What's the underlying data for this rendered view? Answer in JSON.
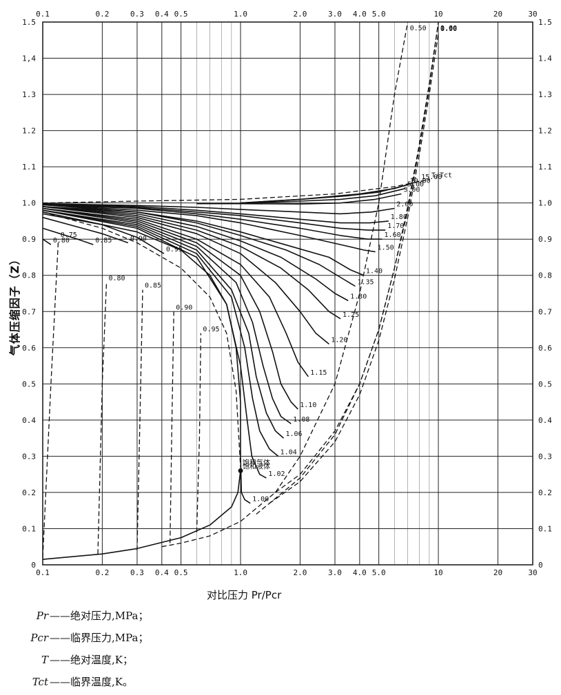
{
  "chart_data": {
    "type": "line",
    "title": "",
    "xlabel": "对比压力 Pr/Pcr",
    "ylabel": "气体压缩因子（Z）",
    "xscale": "log",
    "xlim": [
      0.1,
      30
    ],
    "ylim": [
      0,
      1.5
    ],
    "grid": true,
    "x_ticks": [
      {
        "value": 0.1,
        "label": "0.1"
      },
      {
        "value": 0.2,
        "label": "0.2"
      },
      {
        "value": 0.3,
        "label": "0.3"
      },
      {
        "value": 0.4,
        "label": "0.4"
      },
      {
        "value": 0.5,
        "label": "0.5"
      },
      {
        "value": 1.0,
        "label": "1.0"
      },
      {
        "value": 2.0,
        "label": "2.0"
      },
      {
        "value": 3.0,
        "label": "3.0"
      },
      {
        "value": 4.0,
        "label": "4.0"
      },
      {
        "value": 5.0,
        "label": "5.0"
      },
      {
        "value": 10,
        "label": "10"
      },
      {
        "value": 20,
        "label": "20"
      },
      {
        "value": 30,
        "label": "30"
      }
    ],
    "y_ticks_left": [
      "0",
      "0.1",
      "0.2",
      "0.3",
      "0.4",
      "0.5",
      "0.6",
      "0.7",
      "0.8",
      "0.9",
      "1.0",
      "1.1",
      "1.2",
      "1.3",
      "1,4",
      "1.5"
    ],
    "y_ticks_right": [
      "0",
      "0.1",
      "0.2",
      "0.3",
      "0.4",
      "0.5",
      "0.6",
      "0.7",
      "0.8",
      "0.9",
      "1.0",
      "1.1",
      "1.2",
      "1.3",
      "1.4",
      "1.5"
    ],
    "family_label": "T/Tct",
    "region_labels": [
      "饱和气体",
      "饱和液体"
    ],
    "series": [
      {
        "name": "0.80",
        "label": "0.80",
        "style": "solid",
        "x": [
          0.1,
          0.11
        ],
        "y": [
          0.9,
          0.885
        ]
      },
      {
        "name": "0.85",
        "label": "0.85",
        "style": "solid",
        "x": [
          0.1,
          0.15,
          0.18
        ],
        "y": [
          0.93,
          0.9,
          0.885
        ]
      },
      {
        "name": "0.90",
        "label": "0.90",
        "style": "solid",
        "x": [
          0.1,
          0.2,
          0.27
        ],
        "y": [
          0.96,
          0.915,
          0.89
        ]
      },
      {
        "name": "0.95",
        "label": "0.95",
        "style": "solid",
        "x": [
          0.1,
          0.2,
          0.3,
          0.41
        ],
        "y": [
          0.97,
          0.94,
          0.905,
          0.86
        ]
      },
      {
        "name": "1.00",
        "label": "1.00",
        "style": "solid",
        "x": [
          0.1,
          0.3,
          0.5,
          0.7,
          0.85,
          0.95,
          1.0,
          1.0,
          1.01,
          1.05,
          1.12
        ],
        "y": [
          0.975,
          0.92,
          0.87,
          0.8,
          0.72,
          0.6,
          0.45,
          0.3,
          0.2,
          0.18,
          0.17
        ]
      },
      {
        "name": "1.02",
        "label": "1.02",
        "style": "solid",
        "x": [
          0.1,
          0.3,
          0.6,
          0.85,
          1.0,
          1.08,
          1.14,
          1.25,
          1.35
        ],
        "y": [
          0.98,
          0.93,
          0.85,
          0.72,
          0.55,
          0.4,
          0.3,
          0.25,
          0.24
        ]
      },
      {
        "name": "1.04",
        "label": "1.04",
        "style": "solid",
        "x": [
          0.1,
          0.3,
          0.6,
          0.9,
          1.05,
          1.15,
          1.25,
          1.4,
          1.55
        ],
        "y": [
          0.98,
          0.935,
          0.86,
          0.74,
          0.6,
          0.46,
          0.37,
          0.32,
          0.3
        ]
      },
      {
        "name": "1.06",
        "label": "1.06",
        "style": "solid",
        "x": [
          0.1,
          0.3,
          0.6,
          0.9,
          1.1,
          1.2,
          1.35,
          1.5,
          1.65
        ],
        "y": [
          0.98,
          0.94,
          0.87,
          0.76,
          0.64,
          0.52,
          0.42,
          0.37,
          0.35
        ]
      },
      {
        "name": "1.08",
        "label": "1.08",
        "style": "solid",
        "x": [
          0.1,
          0.3,
          0.6,
          0.95,
          1.15,
          1.3,
          1.45,
          1.6,
          1.8
        ],
        "y": [
          0.985,
          0.945,
          0.88,
          0.78,
          0.67,
          0.55,
          0.46,
          0.41,
          0.39
        ]
      },
      {
        "name": "1.10",
        "label": "1.10",
        "style": "solid",
        "x": [
          0.1,
          0.3,
          0.6,
          1.0,
          1.25,
          1.45,
          1.6,
          1.8,
          1.95
        ],
        "y": [
          0.985,
          0.95,
          0.89,
          0.8,
          0.7,
          0.59,
          0.5,
          0.45,
          0.43
        ]
      },
      {
        "name": "1.15",
        "label": "1.15",
        "style": "solid",
        "x": [
          0.1,
          0.3,
          0.6,
          1.0,
          1.4,
          1.7,
          1.95,
          2.2
        ],
        "y": [
          0.985,
          0.955,
          0.9,
          0.83,
          0.74,
          0.64,
          0.56,
          0.52
        ]
      },
      {
        "name": "1.20",
        "label": "1.20",
        "style": "solid",
        "x": [
          0.1,
          0.3,
          0.6,
          1.0,
          1.5,
          2.0,
          2.4,
          2.8
        ],
        "y": [
          0.99,
          0.96,
          0.915,
          0.86,
          0.78,
          0.7,
          0.64,
          0.61
        ]
      },
      {
        "name": "1.25",
        "label": "1.25",
        "style": "solid",
        "x": [
          0.1,
          0.3,
          0.6,
          1.0,
          1.6,
          2.2,
          2.8,
          3.2
        ],
        "y": [
          0.99,
          0.965,
          0.925,
          0.88,
          0.82,
          0.76,
          0.7,
          0.68
        ]
      },
      {
        "name": "1.30",
        "label": "1.30",
        "style": "solid",
        "x": [
          0.1,
          0.3,
          0.6,
          1.0,
          1.6,
          2.4,
          3.0,
          3.5
        ],
        "y": [
          0.99,
          0.97,
          0.935,
          0.895,
          0.85,
          0.79,
          0.75,
          0.73
        ]
      },
      {
        "name": "1.35",
        "label": "1.35",
        "style": "solid",
        "x": [
          0.1,
          0.3,
          0.6,
          1.0,
          1.7,
          2.5,
          3.3,
          3.8
        ],
        "y": [
          0.99,
          0.975,
          0.945,
          0.91,
          0.87,
          0.83,
          0.79,
          0.77
        ]
      },
      {
        "name": "1.40",
        "label": "1.40",
        "style": "solid",
        "x": [
          0.1,
          0.3,
          0.6,
          1.0,
          1.8,
          2.8,
          3.6,
          4.2
        ],
        "y": [
          0.995,
          0.975,
          0.95,
          0.92,
          0.88,
          0.85,
          0.815,
          0.8
        ]
      },
      {
        "name": "1.50",
        "label": "1.50",
        "style": "solid",
        "x": [
          0.1,
          0.3,
          0.6,
          1.0,
          2.0,
          3.2,
          4.2,
          4.8
        ],
        "y": [
          0.995,
          0.98,
          0.965,
          0.945,
          0.91,
          0.885,
          0.87,
          0.865
        ]
      },
      {
        "name": "1.60",
        "label": "1.60",
        "style": "solid",
        "x": [
          0.1,
          0.3,
          0.6,
          1.0,
          2.0,
          3.2,
          4.4,
          5.2
        ],
        "y": [
          0.995,
          0.985,
          0.97,
          0.955,
          0.93,
          0.91,
          0.9,
          0.9
        ]
      },
      {
        "name": "1.70",
        "label": "1.70",
        "style": "solid",
        "x": [
          0.1,
          0.3,
          0.6,
          1.0,
          2.0,
          3.2,
          4.4,
          5.4
        ],
        "y": [
          0.995,
          0.987,
          0.975,
          0.965,
          0.945,
          0.93,
          0.925,
          0.925
        ]
      },
      {
        "name": "1.80",
        "label": "1.80",
        "style": "solid",
        "x": [
          0.1,
          0.3,
          0.6,
          1.0,
          2.0,
          3.2,
          4.5,
          5.6
        ],
        "y": [
          0.997,
          0.99,
          0.98,
          0.97,
          0.955,
          0.945,
          0.945,
          0.95
        ]
      },
      {
        "name": "2.00",
        "label": "2.00",
        "style": "solid",
        "x": [
          0.1,
          0.3,
          0.6,
          1.0,
          2.0,
          3.2,
          4.6,
          6.0
        ],
        "y": [
          0.998,
          0.993,
          0.988,
          0.982,
          0.975,
          0.97,
          0.975,
          0.985
        ]
      },
      {
        "name": "3.00",
        "label": "3.00",
        "style": "solid",
        "x": [
          0.6,
          1.0,
          2.0,
          3.2,
          4.8,
          6.5
        ],
        "y": [
          0.998,
          0.998,
          0.997,
          1.0,
          1.01,
          1.025
        ]
      },
      {
        "name": "5.00",
        "label": "5.00",
        "style": "solid",
        "x": [
          1.0,
          2.0,
          3.2,
          4.8,
          6.8
        ],
        "y": [
          1.0,
          1.005,
          1.01,
          1.02,
          1.04
        ]
      },
      {
        "name": "10.00",
        "label": "10.00",
        "style": "solid",
        "x": [
          1.0,
          2.0,
          3.5,
          5.0,
          7.0
        ],
        "y": [
          1.0,
          1.01,
          1.02,
          1.03,
          1.05
        ]
      },
      {
        "name": "15.00",
        "label": "15.00",
        "style": "solid",
        "x": [
          1.0,
          2.0,
          4.0,
          6.0,
          8.0
        ],
        "y": [
          1.0,
          1.01,
          1.025,
          1.04,
          1.06
        ]
      },
      {
        "name": "T/Tct",
        "label": "T/Tct",
        "style": "dashed",
        "x": [
          0.1,
          0.3,
          1.0,
          3.0,
          6.0,
          9.0
        ],
        "y": [
          1.0,
          1.005,
          1.01,
          1.025,
          1.045,
          1.065
        ]
      },
      {
        "name": "饱和气体",
        "label": "饱和气体",
        "style": "dashed",
        "x": [
          0.1,
          0.2,
          0.3,
          0.5,
          0.7,
          0.85,
          0.95,
          1.0
        ],
        "y": [
          0.975,
          0.93,
          0.89,
          0.82,
          0.74,
          0.64,
          0.48,
          0.27
        ]
      },
      {
        "name": "饱和液体",
        "label": "饱和液体",
        "style": "solid",
        "x": [
          0.1,
          0.2,
          0.3,
          0.5,
          0.7,
          0.9,
          0.97,
          1.0
        ],
        "y": [
          0.015,
          0.03,
          0.045,
          0.075,
          0.11,
          0.16,
          0.2,
          0.26
        ]
      },
      {
        "name": "0.60 dashed",
        "label": "0.60",
        "style": "dashed",
        "x": [
          1.2,
          2.0,
          3.0,
          4.0,
          5.0,
          6.0,
          7.0,
          8.0,
          9.0,
          10.0
        ],
        "y": [
          0.14,
          0.24,
          0.36,
          0.5,
          0.65,
          0.82,
          0.98,
          1.15,
          1.32,
          1.5
        ]
      },
      {
        "name": "0.90 dashed",
        "label": "0.90",
        "style": "dashed",
        "x": [
          1.4,
          2.0,
          3.0,
          4.0,
          5.0,
          6.0,
          7.0,
          8.0,
          9.0,
          10.0
        ],
        "y": [
          0.17,
          0.23,
          0.34,
          0.47,
          0.62,
          0.79,
          0.96,
          1.13,
          1.3,
          1.47
        ]
      },
      {
        "name": "1.00 dashed",
        "label": "1.00",
        "style": "dashed",
        "x": [
          1.5,
          2.0,
          3.0,
          4.0,
          5.0,
          6.0,
          7.0,
          8.0,
          9.0,
          10.0
        ],
        "y": [
          0.2,
          0.25,
          0.37,
          0.5,
          0.65,
          0.82,
          0.99,
          1.16,
          1.33,
          1.5
        ]
      },
      {
        "name": "0.50 dashed",
        "label": "0.50",
        "style": "dashed",
        "x": [
          0.4,
          0.5,
          0.7,
          1.0,
          1.5,
          2.0,
          3.0,
          4.0,
          5.0,
          6.0,
          7.0
        ],
        "y": [
          0.05,
          0.06,
          0.08,
          0.12,
          0.2,
          0.3,
          0.5,
          0.75,
          1.0,
          1.3,
          1.5
        ]
      },
      {
        "name": "0.75 dashed",
        "label": "0.75",
        "style": "dashed",
        "x": [
          0.1,
          0.11,
          0.12
        ],
        "y": [
          0.02,
          0.5,
          0.9
        ]
      },
      {
        "name": "0.80 dashed",
        "label": "0.80",
        "style": "dashed",
        "x": [
          0.19,
          0.2,
          0.21
        ],
        "y": [
          0.03,
          0.5,
          0.78
        ]
      },
      {
        "name": "0.85 dashed",
        "label": "0.85",
        "style": "dashed",
        "x": [
          0.3,
          0.31,
          0.32
        ],
        "y": [
          0.04,
          0.4,
          0.76
        ]
      },
      {
        "name": "0.90 dashed",
        "label": "0.90",
        "style": "dashed",
        "x": [
          0.44,
          0.45,
          0.46
        ],
        "y": [
          0.06,
          0.4,
          0.7
        ]
      },
      {
        "name": "0.95 dashed",
        "label": "0.95",
        "style": "dashed",
        "x": [
          0.6,
          0.62,
          0.63
        ],
        "y": [
          0.09,
          0.35,
          0.64
        ]
      }
    ],
    "annotations": [
      "0.50",
      "0.60",
      "0.70",
      "0.80",
      "0.90",
      "1.00",
      "2.00",
      "3.00",
      "5.00",
      "10.00",
      "15.00",
      "0.75",
      "0.80",
      "0.85",
      "0.90",
      "0.95"
    ]
  },
  "notes": [
    {
      "symbol": "Pr",
      "text": "绝对压力,MPa；"
    },
    {
      "symbol": "Pcr",
      "text": "临界压力,MPa；"
    },
    {
      "symbol": "T",
      "text": "绝对温度,K；"
    },
    {
      "symbol": "Tct",
      "text": "临界温度,K。"
    }
  ]
}
